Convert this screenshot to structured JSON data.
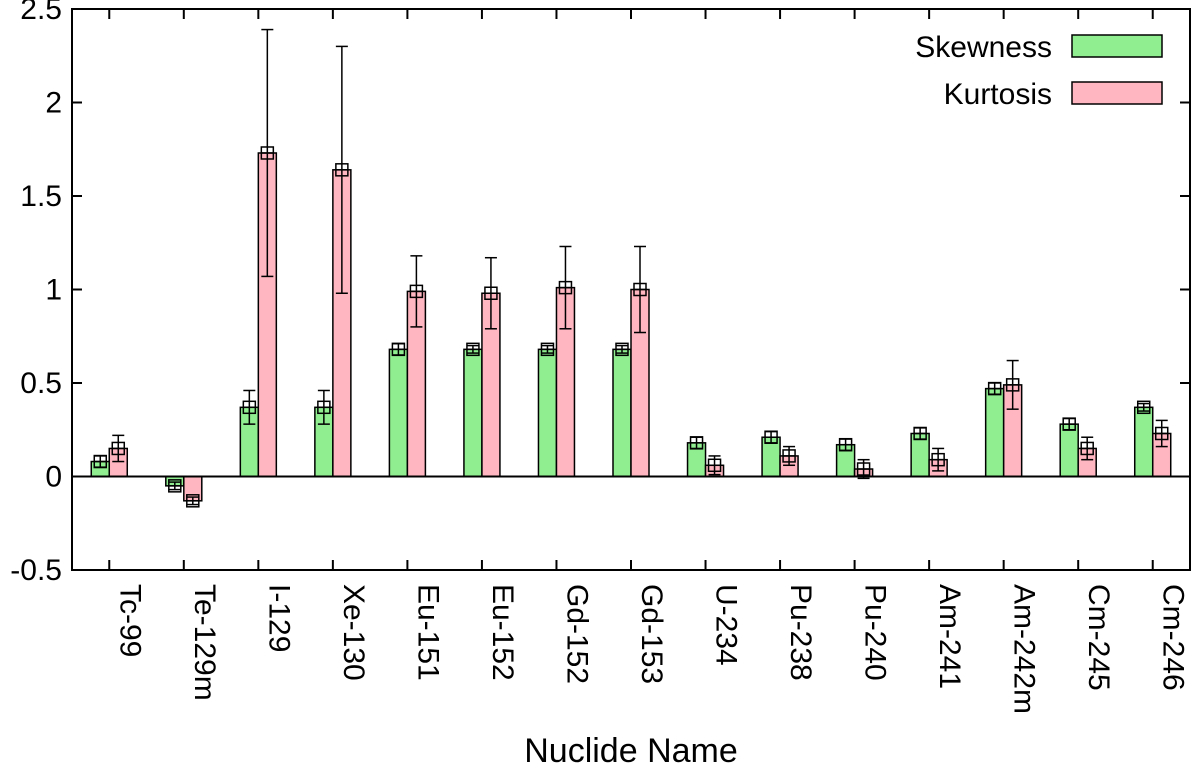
{
  "chart_data": {
    "type": "bar",
    "xlabel": "Nuclide Name",
    "ylabel": "",
    "ylim": [
      -0.5,
      2.5
    ],
    "yticks": [
      -0.5,
      0,
      0.5,
      1,
      1.5,
      2,
      2.5
    ],
    "ytick_labels": [
      "-0.5",
      "0",
      "0.5",
      "1",
      "1.5",
      "2",
      "2.5"
    ],
    "grid": false,
    "legend_position": "top-right",
    "categories": [
      "Tc-99",
      "Te-129m",
      "I-129",
      "Xe-130",
      "Eu-151",
      "Eu-152",
      "Gd-152",
      "Gd-153",
      "U-234",
      "Pu-238",
      "Pu-240",
      "Am-241",
      "Am-242m",
      "Cm-245",
      "Cm-246"
    ],
    "series": [
      {
        "name": "Skewness",
        "color": "#90ee90",
        "values": [
          0.08,
          -0.05,
          0.37,
          0.37,
          0.68,
          0.68,
          0.68,
          0.68,
          0.18,
          0.21,
          0.17,
          0.23,
          0.47,
          0.28,
          0.37
        ],
        "errors": [
          0.03,
          0.02,
          0.09,
          0.09,
          0.03,
          0.02,
          0.02,
          0.02,
          0.03,
          0.03,
          0.03,
          0.03,
          0.03,
          0.03,
          0.02
        ]
      },
      {
        "name": "Kurtosis",
        "color": "#ffb6c1",
        "values": [
          0.15,
          -0.13,
          1.73,
          1.64,
          0.99,
          0.98,
          1.01,
          1.0,
          0.06,
          0.11,
          0.04,
          0.09,
          0.49,
          0.15,
          0.23
        ],
        "errors": [
          0.07,
          0.02,
          0.66,
          0.66,
          0.19,
          0.19,
          0.22,
          0.23,
          0.05,
          0.05,
          0.05,
          0.06,
          0.13,
          0.06,
          0.07
        ]
      }
    ]
  }
}
